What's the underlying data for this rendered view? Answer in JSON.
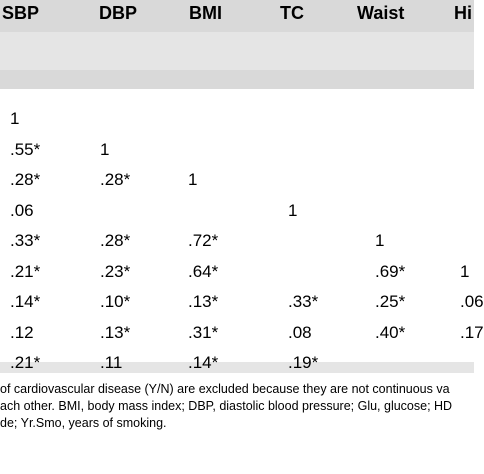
{
  "table": {
    "columns": [
      "SBP",
      "DBP",
      "BMI",
      "TC",
      "Waist",
      "Hi"
    ],
    "rows": [
      [
        "1",
        "",
        "",
        "",
        "",
        ""
      ],
      [
        ".55*",
        "1",
        "",
        "",
        "",
        ""
      ],
      [
        ".28*",
        ".28*",
        "1",
        "",
        "",
        ""
      ],
      [
        ".06",
        "",
        "",
        "1",
        "",
        ""
      ],
      [
        ".33*",
        ".28*",
        ".72*",
        "",
        "1",
        ""
      ],
      [
        ".21*",
        ".23*",
        ".64*",
        "",
        ".69*",
        "1"
      ],
      [
        ".14*",
        ".10*",
        ".13*",
        ".33*",
        ".25*",
        ".06"
      ],
      [
        ".12",
        ".13*",
        ".31*",
        ".08",
        ".40*",
        ".17"
      ],
      [
        ".21*",
        ".11",
        ".14*",
        ".19*",
        "",
        ""
      ]
    ]
  },
  "footnote": {
    "lines": [
      "of cardiovascular disease (Y/N) are excluded because they are not continuous va",
      "ach other. BMI, body mass index; DBP, diastolic blood pressure; Glu, glucose; HD",
      "de; Yr.Smo, years of smoking."
    ]
  }
}
